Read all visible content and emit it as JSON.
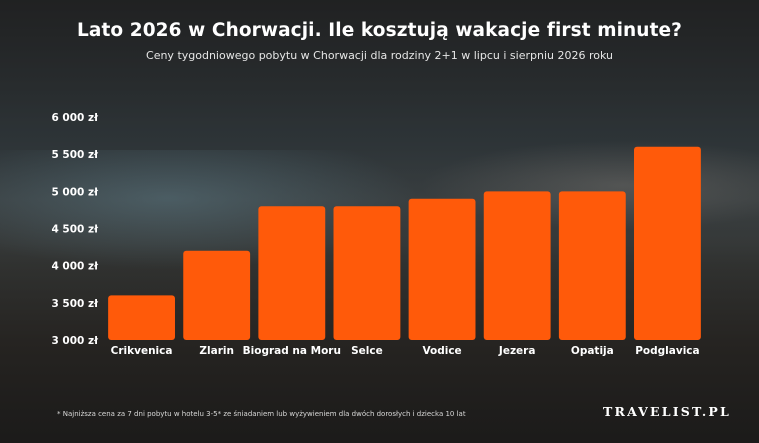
{
  "title": "Lato 2026 w Chorwacji. Ile kosztują wakacje first minute?",
  "subtitle": "Ceny tygodniowego pobytu w Chorwacji dla rodziny 2+1 w lipcu i sierpniu 2026 roku",
  "footnote": "* Najniższa cena za 7 dni pobytu w hotelu 3-5* ze śniadaniem lub wyżywieniem dla dwóch dorosłych i dziecka 10 lat",
  "brand": "TRAVELIST.PL",
  "colors": {
    "bar": "#ff5a0a"
  },
  "chart_data": {
    "type": "bar",
    "title": "Lato 2026 w Chorwacji. Ile kosztują wakacje first minute?",
    "xlabel": "",
    "ylabel": "",
    "categories": [
      "Crikvenica",
      "Zlarin",
      "Biograd na Moru",
      "Selce",
      "Vodice",
      "Jezera",
      "Opatija",
      "Podglavica"
    ],
    "values": [
      3600,
      4200,
      4800,
      4800,
      4900,
      5000,
      5000,
      5600
    ],
    "ylim": [
      3000,
      6000
    ],
    "yticks": [
      3000,
      3500,
      4000,
      4500,
      5000,
      5500,
      6000
    ],
    "ytick_labels": [
      "3 000 zł",
      "3 500 zł",
      "4 000 zł",
      "4 500 zł",
      "5 000 zł",
      "5 500 zł",
      "6 000 zł"
    ],
    "grid": false,
    "legend": "none"
  }
}
